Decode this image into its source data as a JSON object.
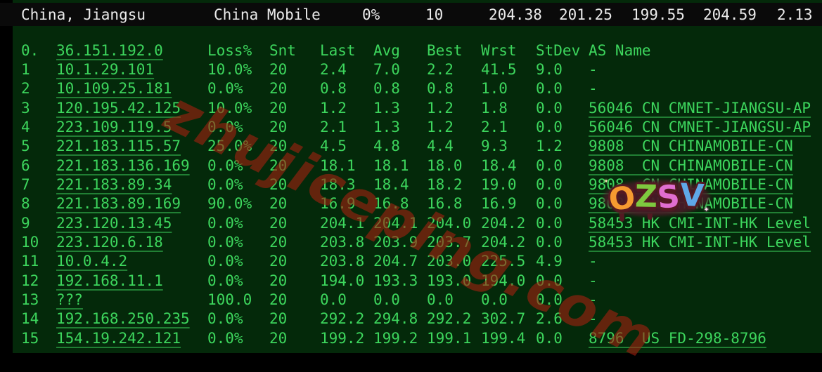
{
  "summary_bar": {
    "location": "China, Jiangsu",
    "provider": "China Mobile",
    "avg_loss": "0%",
    "sent": "10",
    "metrics": [
      "204.38",
      "201.25",
      "199.55",
      "204.59",
      "2.13"
    ]
  },
  "trace_table": {
    "origin_index": "0.",
    "origin_host": "36.151.192.0",
    "headers": [
      "Loss%",
      "Snt",
      "Last",
      "Avg",
      "Best",
      "Wrst",
      "StDev",
      "AS Name"
    ],
    "rows": [
      {
        "idx": "1",
        "host": "10.1.29.101",
        "loss": "10.0%",
        "snt": "20",
        "last": "2.4",
        "avg": "7.0",
        "best": "2.2",
        "wrst": "41.5",
        "stdev": "9.0",
        "as_name": "-"
      },
      {
        "idx": "2",
        "host": "10.109.25.181",
        "loss": "0.0%",
        "snt": "20",
        "last": "0.8",
        "avg": "0.8",
        "best": "0.8",
        "wrst": "1.0",
        "stdev": "0.0",
        "as_name": "-"
      },
      {
        "idx": "3",
        "host": "120.195.42.125",
        "loss": "10.0%",
        "snt": "20",
        "last": "1.2",
        "avg": "1.3",
        "best": "1.2",
        "wrst": "1.8",
        "stdev": "0.0",
        "as_name": "56046 CN CMNET-JIANGSU-AP"
      },
      {
        "idx": "4",
        "host": "223.109.119.5",
        "loss": "0.0%",
        "snt": "20",
        "last": "2.1",
        "avg": "1.3",
        "best": "1.2",
        "wrst": "2.1",
        "stdev": "0.0",
        "as_name": "56046 CN CMNET-JIANGSU-AP"
      },
      {
        "idx": "5",
        "host": "221.183.115.57",
        "loss": "25.0%",
        "snt": "20",
        "last": "4.5",
        "avg": "4.8",
        "best": "4.4",
        "wrst": "9.3",
        "stdev": "1.2",
        "as_name": "9808  CN CHINAMOBILE-CN"
      },
      {
        "idx": "6",
        "host": "221.183.136.169",
        "loss": "0.0%",
        "snt": "20",
        "last": "18.1",
        "avg": "18.1",
        "best": "18.0",
        "wrst": "18.4",
        "stdev": "0.0",
        "as_name": "9808  CN CHINAMOBILE-CN"
      },
      {
        "idx": "7",
        "host": "221.183.89.34",
        "loss": "0.0%",
        "snt": "20",
        "last": "18.3",
        "avg": "18.4",
        "best": "18.2",
        "wrst": "19.0",
        "stdev": "0.0",
        "as_name": "9808  CN CHINAMOBILE-CN"
      },
      {
        "idx": "8",
        "host": "221.183.89.169",
        "loss": "90.0%",
        "snt": "20",
        "last": "16.9",
        "avg": "16.8",
        "best": "16.8",
        "wrst": "16.9",
        "stdev": "0.0",
        "as_name": "9808  CN CHINAMOBILE-CN"
      },
      {
        "idx": "9",
        "host": "223.120.13.45",
        "loss": "0.0%",
        "snt": "20",
        "last": "204.1",
        "avg": "204.1",
        "best": "204.0",
        "wrst": "204.2",
        "stdev": "0.0",
        "as_name": "58453 HK CMI-INT-HK Level"
      },
      {
        "idx": "10",
        "host": "223.120.6.18",
        "loss": "0.0%",
        "snt": "20",
        "last": "203.8",
        "avg": "203.9",
        "best": "203.7",
        "wrst": "204.2",
        "stdev": "0.0",
        "as_name": "58453 HK CMI-INT-HK Level"
      },
      {
        "idx": "11",
        "host": "10.0.4.2",
        "loss": "0.0%",
        "snt": "20",
        "last": "203.8",
        "avg": "204.7",
        "best": "203.0",
        "wrst": "225.5",
        "stdev": "4.9",
        "as_name": "-"
      },
      {
        "idx": "12",
        "host": "192.168.11.1",
        "loss": "0.0%",
        "snt": "20",
        "last": "194.0",
        "avg": "193.3",
        "best": "193.0",
        "wrst": "194.0",
        "stdev": "0.0",
        "as_name": "-"
      },
      {
        "idx": "13",
        "host": "???",
        "loss": "100.0",
        "snt": "20",
        "last": "0.0",
        "avg": "0.0",
        "best": "0.0",
        "wrst": "0.0",
        "stdev": "0.0",
        "as_name": "-"
      },
      {
        "idx": "14",
        "host": "192.168.250.235",
        "loss": "0.0%",
        "snt": "20",
        "last": "292.2",
        "avg": "294.8",
        "best": "292.2",
        "wrst": "302.7",
        "stdev": "2.6",
        "as_name": "-"
      },
      {
        "idx": "15",
        "host": "154.19.242.121",
        "loss": "0.0%",
        "snt": "20",
        "last": "199.2",
        "avg": "199.2",
        "best": "199.1",
        "wrst": "199.4",
        "stdev": "0.0",
        "as_name": "8796  US FD-298-8796"
      }
    ]
  },
  "watermark": {
    "text": "zhujiceping.com",
    "color": "#a32110"
  },
  "sticker": {
    "word": "OZSV",
    "letters": [
      {
        "ch": "O",
        "color": "#f59a30"
      },
      {
        "ch": "Z",
        "color": "#7ec93f"
      },
      {
        "ch": "S",
        "color": "#e06ed0"
      },
      {
        "ch": "V",
        "color": "#5fa8e8"
      }
    ],
    "outline_color": "#541a22",
    "sparkle": "✦"
  },
  "colors": {
    "terminal_bg": "#04290a",
    "terminal_text": "#3dd65d",
    "bar_bg": "#0a0a0a",
    "bar_text": "#ebebeb",
    "watermark_red": "#a32110"
  }
}
